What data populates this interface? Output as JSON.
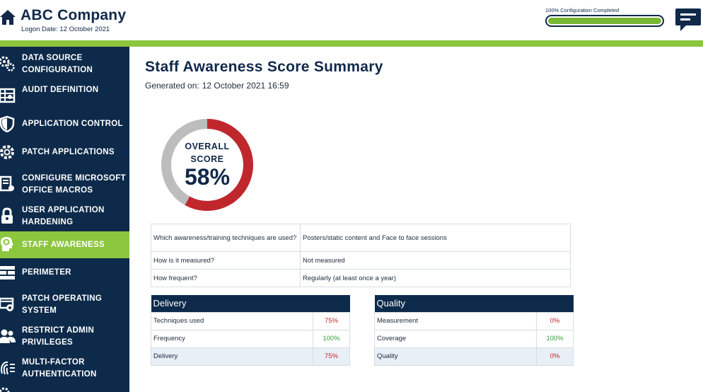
{
  "header": {
    "company": "ABC Company",
    "logon_date": "Logon Date: 12 October 2021",
    "progress_label": "100% Configuration Completed",
    "progress_fraction": 1.0
  },
  "sidebar": {
    "items": [
      {
        "label": "DATA SOURCE CONFIGURATION",
        "icon": "gears-icon"
      },
      {
        "label": "AUDIT DEFINITION",
        "icon": "audit-icon"
      },
      {
        "label": "APPLICATION CONTROL",
        "icon": "shield-icon"
      },
      {
        "label": "PATCH APPLICATIONS",
        "icon": "gear-refresh-icon"
      },
      {
        "label": "CONFIGURE MICROSOFT OFFICE MACROS",
        "icon": "document-gear-icon"
      },
      {
        "label": "USER APPLICATION HARDENING",
        "icon": "lock-icon"
      },
      {
        "label": "STAFF AWARENESS",
        "icon": "head-icon",
        "active": true
      },
      {
        "label": "PERIMETER",
        "icon": "firewall-icon"
      },
      {
        "label": "PATCH OPERATING SYSTEM",
        "icon": "os-patch-icon"
      },
      {
        "label": "RESTRICT ADMIN PRIVILEGES",
        "icon": "users-icon"
      },
      {
        "label": "MULTI-FACTOR AUTHENTICATION",
        "icon": "fingerprint-icon"
      }
    ]
  },
  "main": {
    "title": "Staff Awareness Score Summary",
    "generated_label": "Generated on:",
    "generated_value": "12 October 2021 16:59",
    "score": {
      "label_line1": "OVERALL",
      "label_line2": "SCORE",
      "value_text": "58%",
      "value": 58,
      "score_color": "#c0272d",
      "remainder_color": "#bdbdbd"
    },
    "questions": [
      {
        "q": "Which awareness/training techniques are used?",
        "a": "Posters/static content and Face to face sessions",
        "status": "red"
      },
      {
        "q": "How is it measured?",
        "a": "Not measured",
        "status": "red"
      },
      {
        "q": "How frequent?",
        "a": "Regularly (at least once a year)",
        "status": "green"
      }
    ],
    "delivery": {
      "title": "Delivery",
      "rows": [
        {
          "label": "Techniques used",
          "value": "75%",
          "status": "red"
        },
        {
          "label": "Frequency",
          "value": "100%",
          "status": "green"
        },
        {
          "label": "Delivery",
          "value": "75%",
          "status": "red"
        }
      ]
    },
    "quality": {
      "title": "Quality",
      "rows": [
        {
          "label": "Measurement",
          "value": "0%",
          "status": "red"
        },
        {
          "label": "Coverage",
          "value": "100%",
          "status": "green"
        },
        {
          "label": "Quality",
          "value": "0%",
          "status": "red"
        }
      ]
    }
  },
  "colors": {
    "navy": "#0d2a4a",
    "accent_green": "#8cc63f",
    "red": "#c0272d",
    "green": "#2e9e3a"
  }
}
